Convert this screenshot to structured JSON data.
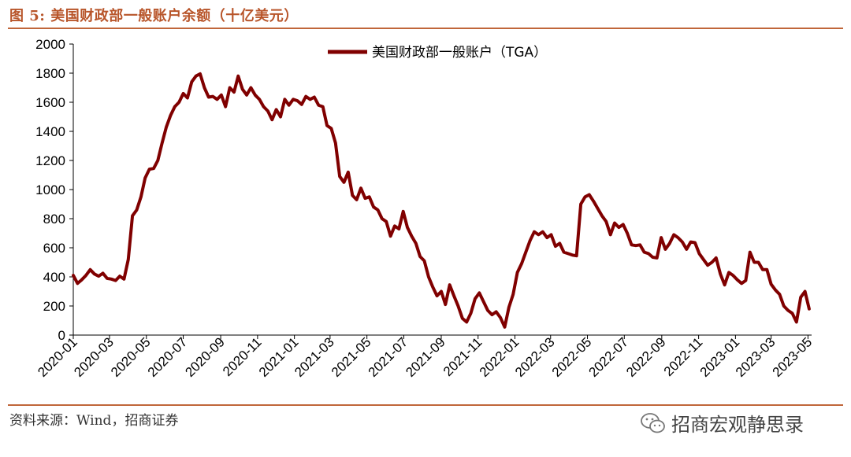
{
  "header": {
    "title": "图 5:  美国财政部一般账户余额（十亿美元）"
  },
  "footer": {
    "source": "资料来源：Wind，招商证券",
    "watermark": "招商宏观静思录",
    "watermark_icon": "wechat-icon"
  },
  "colors": {
    "series": "#800000",
    "accent": "#c0663a"
  },
  "chart_data": {
    "type": "line",
    "title": "",
    "xlabel": "",
    "ylabel": "",
    "ylim": [
      0,
      2000
    ],
    "yticks": [
      0,
      200,
      400,
      600,
      800,
      1000,
      1200,
      1400,
      1600,
      1800,
      2000
    ],
    "xticks": [
      "2020-01",
      "2020-03",
      "2020-05",
      "2020-07",
      "2020-09",
      "2020-11",
      "2021-01",
      "2021-03",
      "2021-05",
      "2021-07",
      "2021-09",
      "2021-11",
      "2022-01",
      "2022-03",
      "2022-05",
      "2022-07",
      "2022-09",
      "2022-11",
      "2023-01",
      "2023-03",
      "2023-05"
    ],
    "xrange": [
      "2020-01-01",
      "2023-05-07"
    ],
    "grid": false,
    "legend_position": "top-center",
    "series": [
      {
        "name": "美国财政部一般账户（TGA）",
        "points": [
          [
            "2020-01-01",
            410
          ],
          [
            "2020-01-08",
            355
          ],
          [
            "2020-01-15",
            380
          ],
          [
            "2020-01-22",
            410
          ],
          [
            "2020-01-29",
            450
          ],
          [
            "2020-02-05",
            420
          ],
          [
            "2020-02-12",
            405
          ],
          [
            "2020-02-19",
            425
          ],
          [
            "2020-02-26",
            390
          ],
          [
            "2020-03-04",
            385
          ],
          [
            "2020-03-11",
            375
          ],
          [
            "2020-03-18",
            405
          ],
          [
            "2020-03-25",
            385
          ],
          [
            "2020-04-01",
            520
          ],
          [
            "2020-04-08",
            820
          ],
          [
            "2020-04-15",
            860
          ],
          [
            "2020-04-22",
            950
          ],
          [
            "2020-04-29",
            1080
          ],
          [
            "2020-05-06",
            1140
          ],
          [
            "2020-05-13",
            1145
          ],
          [
            "2020-05-20",
            1200
          ],
          [
            "2020-05-27",
            1320
          ],
          [
            "2020-06-03",
            1430
          ],
          [
            "2020-06-10",
            1510
          ],
          [
            "2020-06-17",
            1570
          ],
          [
            "2020-06-24",
            1600
          ],
          [
            "2020-07-01",
            1660
          ],
          [
            "2020-07-08",
            1630
          ],
          [
            "2020-07-15",
            1740
          ],
          [
            "2020-07-22",
            1780
          ],
          [
            "2020-07-29",
            1795
          ],
          [
            "2020-08-05",
            1700
          ],
          [
            "2020-08-12",
            1635
          ],
          [
            "2020-08-19",
            1640
          ],
          [
            "2020-08-26",
            1620
          ],
          [
            "2020-09-02",
            1650
          ],
          [
            "2020-09-09",
            1570
          ],
          [
            "2020-09-16",
            1700
          ],
          [
            "2020-09-23",
            1670
          ],
          [
            "2020-09-30",
            1780
          ],
          [
            "2020-10-07",
            1690
          ],
          [
            "2020-10-14",
            1650
          ],
          [
            "2020-10-21",
            1700
          ],
          [
            "2020-10-28",
            1650
          ],
          [
            "2020-11-04",
            1620
          ],
          [
            "2020-11-11",
            1570
          ],
          [
            "2020-11-18",
            1540
          ],
          [
            "2020-11-25",
            1480
          ],
          [
            "2020-12-02",
            1550
          ],
          [
            "2020-12-09",
            1500
          ],
          [
            "2020-12-16",
            1620
          ],
          [
            "2020-12-23",
            1580
          ],
          [
            "2020-12-30",
            1620
          ],
          [
            "2021-01-06",
            1610
          ],
          [
            "2021-01-13",
            1585
          ],
          [
            "2021-01-20",
            1640
          ],
          [
            "2021-01-27",
            1620
          ],
          [
            "2021-02-03",
            1635
          ],
          [
            "2021-02-10",
            1580
          ],
          [
            "2021-02-17",
            1570
          ],
          [
            "2021-02-24",
            1440
          ],
          [
            "2021-03-03",
            1420
          ],
          [
            "2021-03-10",
            1320
          ],
          [
            "2021-03-17",
            1090
          ],
          [
            "2021-03-24",
            1050
          ],
          [
            "2021-03-31",
            1120
          ],
          [
            "2021-04-07",
            960
          ],
          [
            "2021-04-14",
            930
          ],
          [
            "2021-04-21",
            1010
          ],
          [
            "2021-04-28",
            940
          ],
          [
            "2021-05-05",
            950
          ],
          [
            "2021-05-12",
            880
          ],
          [
            "2021-05-19",
            860
          ],
          [
            "2021-05-26",
            800
          ],
          [
            "2021-06-02",
            780
          ],
          [
            "2021-06-09",
            680
          ],
          [
            "2021-06-16",
            750
          ],
          [
            "2021-06-23",
            730
          ],
          [
            "2021-06-30",
            850
          ],
          [
            "2021-07-07",
            740
          ],
          [
            "2021-07-14",
            680
          ],
          [
            "2021-07-21",
            630
          ],
          [
            "2021-07-28",
            540
          ],
          [
            "2021-08-04",
            510
          ],
          [
            "2021-08-11",
            400
          ],
          [
            "2021-08-18",
            330
          ],
          [
            "2021-08-25",
            270
          ],
          [
            "2021-09-01",
            300
          ],
          [
            "2021-09-08",
            210
          ],
          [
            "2021-09-15",
            345
          ],
          [
            "2021-09-22",
            270
          ],
          [
            "2021-09-29",
            200
          ],
          [
            "2021-10-06",
            115
          ],
          [
            "2021-10-13",
            90
          ],
          [
            "2021-10-20",
            150
          ],
          [
            "2021-10-27",
            250
          ],
          [
            "2021-11-03",
            290
          ],
          [
            "2021-11-10",
            230
          ],
          [
            "2021-11-17",
            170
          ],
          [
            "2021-11-24",
            140
          ],
          [
            "2021-12-01",
            160
          ],
          [
            "2021-12-08",
            120
          ],
          [
            "2021-12-15",
            55
          ],
          [
            "2021-12-22",
            190
          ],
          [
            "2021-12-29",
            280
          ],
          [
            "2022-01-05",
            430
          ],
          [
            "2022-01-12",
            490
          ],
          [
            "2022-01-19",
            570
          ],
          [
            "2022-01-26",
            650
          ],
          [
            "2022-02-02",
            710
          ],
          [
            "2022-02-09",
            690
          ],
          [
            "2022-02-16",
            710
          ],
          [
            "2022-02-23",
            670
          ],
          [
            "2022-03-02",
            690
          ],
          [
            "2022-03-09",
            610
          ],
          [
            "2022-03-16",
            630
          ],
          [
            "2022-03-23",
            570
          ],
          [
            "2022-03-30",
            560
          ],
          [
            "2022-04-06",
            550
          ],
          [
            "2022-04-13",
            545
          ],
          [
            "2022-04-20",
            900
          ],
          [
            "2022-04-27",
            950
          ],
          [
            "2022-05-04",
            965
          ],
          [
            "2022-05-11",
            920
          ],
          [
            "2022-05-18",
            870
          ],
          [
            "2022-05-25",
            820
          ],
          [
            "2022-06-01",
            780
          ],
          [
            "2022-06-08",
            690
          ],
          [
            "2022-06-15",
            770
          ],
          [
            "2022-06-22",
            740
          ],
          [
            "2022-06-29",
            760
          ],
          [
            "2022-07-06",
            700
          ],
          [
            "2022-07-13",
            620
          ],
          [
            "2022-07-20",
            615
          ],
          [
            "2022-07-27",
            620
          ],
          [
            "2022-08-03",
            570
          ],
          [
            "2022-08-10",
            560
          ],
          [
            "2022-08-17",
            535
          ],
          [
            "2022-08-24",
            530
          ],
          [
            "2022-08-31",
            670
          ],
          [
            "2022-09-07",
            590
          ],
          [
            "2022-09-14",
            630
          ],
          [
            "2022-09-21",
            690
          ],
          [
            "2022-09-28",
            670
          ],
          [
            "2022-10-05",
            640
          ],
          [
            "2022-10-12",
            590
          ],
          [
            "2022-10-19",
            640
          ],
          [
            "2022-10-26",
            635
          ],
          [
            "2022-11-02",
            560
          ],
          [
            "2022-11-09",
            520
          ],
          [
            "2022-11-16",
            480
          ],
          [
            "2022-11-23",
            500
          ],
          [
            "2022-11-30",
            530
          ],
          [
            "2022-12-07",
            420
          ],
          [
            "2022-12-14",
            345
          ],
          [
            "2022-12-21",
            430
          ],
          [
            "2022-12-28",
            410
          ],
          [
            "2023-01-04",
            380
          ],
          [
            "2023-01-11",
            355
          ],
          [
            "2023-01-18",
            375
          ],
          [
            "2023-01-25",
            570
          ],
          [
            "2023-02-01",
            500
          ],
          [
            "2023-02-08",
            500
          ],
          [
            "2023-02-15",
            450
          ],
          [
            "2023-02-22",
            450
          ],
          [
            "2023-03-01",
            350
          ],
          [
            "2023-03-08",
            310
          ],
          [
            "2023-03-15",
            280
          ],
          [
            "2023-03-22",
            200
          ],
          [
            "2023-03-29",
            170
          ],
          [
            "2023-04-05",
            150
          ],
          [
            "2023-04-12",
            90
          ],
          [
            "2023-04-19",
            260
          ],
          [
            "2023-04-26",
            300
          ],
          [
            "2023-05-03",
            180
          ]
        ]
      }
    ]
  }
}
